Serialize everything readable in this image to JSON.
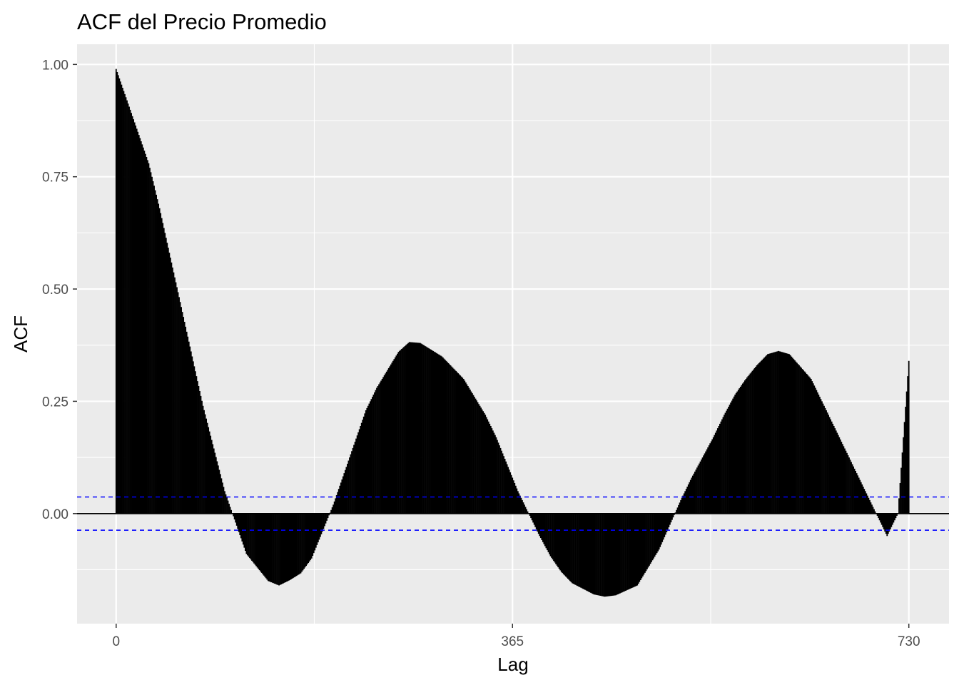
{
  "chart_data": {
    "type": "bar",
    "title": "ACF del Precio Promedio",
    "xlabel": "Lag",
    "ylabel": "ACF",
    "x_ticks": [
      0,
      365,
      730
    ],
    "y_ticks": [
      0,
      0.25,
      0.5,
      0.75,
      1
    ],
    "y_tick_labels": [
      "0.00",
      "0.25",
      "0.50",
      "0.75",
      "1.00"
    ],
    "xlim": [
      -36,
      767
    ],
    "ylim": [
      -0.245,
      1.045
    ],
    "grid": true,
    "confidence_bound": 0.037,
    "zero_line": true,
    "series": [
      {
        "lags": [
          0,
          10,
          30,
          40,
          60,
          80,
          100,
          120,
          140,
          150,
          160,
          170,
          180,
          190,
          200,
          210,
          220,
          230,
          240,
          250,
          260,
          270,
          280,
          300,
          320,
          340,
          350,
          360,
          370,
          390,
          400,
          410,
          420,
          440,
          450,
          460,
          480,
          500,
          520,
          530,
          540,
          550,
          560,
          570,
          580,
          590,
          600,
          610,
          620,
          640,
          660,
          680,
          700,
          710,
          720,
          730
        ],
        "values": [
          0.99,
          0.92,
          0.78,
          0.68,
          0.46,
          0.24,
          0.05,
          -0.09,
          -0.15,
          -0.16,
          -0.148,
          -0.133,
          -0.1,
          -0.04,
          0.02,
          0.09,
          0.16,
          0.23,
          0.28,
          0.32,
          0.36,
          0.382,
          0.38,
          0.35,
          0.3,
          0.22,
          0.17,
          0.11,
          0.05,
          -0.05,
          -0.095,
          -0.13,
          -0.155,
          -0.18,
          -0.185,
          -0.182,
          -0.16,
          -0.08,
          0.03,
          0.08,
          0.125,
          0.17,
          0.22,
          0.265,
          0.3,
          0.33,
          0.355,
          0.362,
          0.355,
          0.3,
          0.2,
          0.1,
          0.0,
          -0.05,
          0.0,
          0.34
        ]
      }
    ]
  }
}
